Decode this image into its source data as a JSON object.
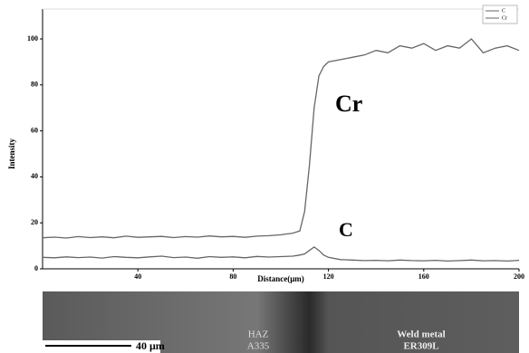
{
  "chart_data": {
    "type": "line",
    "x_label": "Distance(μm)",
    "y_label": "Intensity",
    "x": [
      0,
      5,
      10,
      15,
      20,
      25,
      30,
      35,
      40,
      45,
      50,
      55,
      60,
      65,
      70,
      75,
      80,
      85,
      90,
      95,
      100,
      105,
      108,
      110,
      112,
      114,
      116,
      118,
      120,
      125,
      130,
      135,
      140,
      145,
      150,
      155,
      160,
      165,
      170,
      175,
      180,
      185,
      190,
      195,
      200
    ],
    "series": [
      {
        "name": "C",
        "color": "#666666",
        "values": [
          5,
          4.8,
          5.2,
          4.9,
          5.1,
          4.7,
          5.3,
          5,
          4.8,
          5.2,
          5.5,
          4.9,
          5.1,
          4.6,
          5.3,
          5,
          5.2,
          4.8,
          5.4,
          5.1,
          5.3,
          5.5,
          6,
          6.5,
          8,
          9.5,
          8,
          6,
          5,
          4,
          3.8,
          3.6,
          3.7,
          3.5,
          3.8,
          3.6,
          3.5,
          3.7,
          3.4,
          3.6,
          3.8,
          3.5,
          3.6,
          3.4,
          3.7
        ]
      },
      {
        "name": "Cr",
        "color": "#666666",
        "values": [
          13.5,
          13.8,
          13.4,
          14,
          13.6,
          13.9,
          13.5,
          14.2,
          13.7,
          13.9,
          14.1,
          13.6,
          14,
          13.8,
          14.3,
          13.9,
          14.1,
          13.7,
          14.2,
          14.4,
          14.8,
          15.5,
          16.5,
          25,
          45,
          70,
          84,
          88,
          90,
          91,
          92,
          93,
          95,
          94,
          97,
          96,
          98,
          95,
          97,
          96,
          100,
          94,
          96,
          97,
          95
        ]
      }
    ],
    "annotations": [
      "Cr",
      "C"
    ],
    "xlim": [
      0,
      200
    ],
    "xticks": [
      40,
      80,
      120,
      160,
      200
    ],
    "ylim": [
      0,
      113
    ],
    "yticks": [
      0,
      20,
      40,
      60,
      80,
      100
    ],
    "legend": "top-right"
  },
  "micrograph": {
    "scale_bar": "40 μm",
    "left_label": [
      "HAZ",
      "A335"
    ],
    "right_label": [
      "Weld metal",
      "ER309L"
    ]
  }
}
